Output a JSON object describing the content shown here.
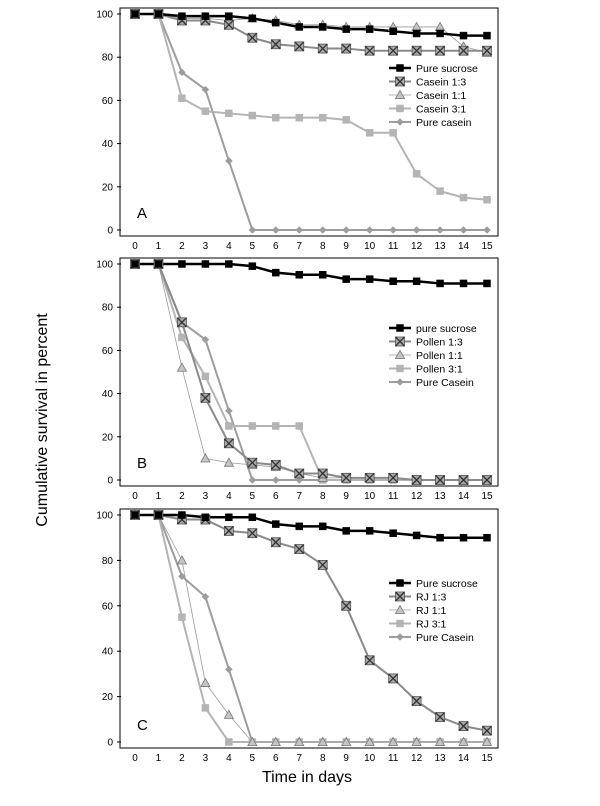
{
  "figure": {
    "ylabel": "Cumulative survival in percent",
    "xlabel": "Time in days"
  },
  "chart_data": [
    {
      "type": "line",
      "panel": "A",
      "x": [
        0,
        1,
        2,
        3,
        4,
        5,
        6,
        7,
        8,
        9,
        10,
        11,
        12,
        13,
        14,
        15
      ],
      "xlim": [
        0,
        15
      ],
      "ylim": [
        0,
        100
      ],
      "yticks": [
        0,
        20,
        40,
        60,
        80,
        100
      ],
      "legend": "right",
      "series": [
        {
          "name": "Pure sucrose",
          "style": "sucrose",
          "values": [
            100,
            100,
            99,
            99,
            99,
            98,
            96,
            94,
            94,
            93,
            93,
            92,
            91,
            91,
            90,
            90
          ]
        },
        {
          "name": "Casein 1:3",
          "style": "r13",
          "values": [
            100,
            100,
            97,
            97,
            95,
            89,
            86,
            85,
            84,
            84,
            83,
            83,
            83,
            83,
            83,
            83
          ]
        },
        {
          "name": "Casein 1:1",
          "style": "r11",
          "values": [
            100,
            100,
            98,
            98,
            97,
            98,
            97,
            95,
            95,
            94,
            94,
            94,
            94,
            94,
            85,
            82
          ]
        },
        {
          "name": "Casein 3:1",
          "style": "r31",
          "values": [
            100,
            100,
            61,
            55,
            54,
            53,
            52,
            52,
            52,
            51,
            45,
            45,
            26,
            18,
            15,
            14
          ]
        },
        {
          "name": "Pure casein",
          "style": "casein",
          "values": [
            100,
            100,
            73,
            65,
            32,
            0,
            0,
            0,
            0,
            0,
            0,
            0,
            0,
            0,
            0,
            0
          ]
        }
      ]
    },
    {
      "type": "line",
      "panel": "B",
      "x": [
        0,
        1,
        2,
        3,
        4,
        5,
        6,
        7,
        8,
        9,
        10,
        11,
        12,
        13,
        14,
        15
      ],
      "xlim": [
        0,
        15
      ],
      "ylim": [
        0,
        100
      ],
      "yticks": [
        0,
        20,
        40,
        60,
        80,
        100
      ],
      "legend": "right",
      "series": [
        {
          "name": "pure sucrose",
          "style": "sucrose",
          "values": [
            100,
            100,
            100,
            100,
            100,
            99,
            96,
            95,
            95,
            93,
            93,
            92,
            92,
            91,
            91,
            91
          ]
        },
        {
          "name": "Pollen 1:3",
          "style": "r13",
          "values": [
            100,
            100,
            73,
            38,
            17,
            8,
            7,
            3,
            3,
            1,
            1,
            1,
            0,
            0,
            0,
            0
          ]
        },
        {
          "name": "Pollen 1:1",
          "style": "r11",
          "values": [
            100,
            100,
            52,
            10,
            8,
            7,
            6,
            3,
            1,
            1,
            1,
            1,
            0,
            0,
            0,
            0
          ]
        },
        {
          "name": "Pollen 3:1",
          "style": "r31",
          "values": [
            100,
            100,
            66,
            48,
            25,
            25,
            25,
            25,
            0,
            0,
            0,
            0,
            0,
            0,
            0,
            0
          ]
        },
        {
          "name": "Pure Casein",
          "style": "casein",
          "values": [
            100,
            100,
            73,
            65,
            32,
            0,
            0,
            0,
            0,
            0,
            0,
            0,
            0,
            0,
            0,
            0
          ]
        }
      ]
    },
    {
      "type": "line",
      "panel": "C",
      "x": [
        0,
        1,
        2,
        3,
        4,
        5,
        6,
        7,
        8,
        9,
        10,
        11,
        12,
        13,
        14,
        15
      ],
      "xlim": [
        0,
        15
      ],
      "ylim": [
        0,
        100
      ],
      "yticks": [
        0,
        20,
        40,
        60,
        80,
        100
      ],
      "legend": "right",
      "series": [
        {
          "name": "Pure sucrose",
          "style": "sucrose",
          "values": [
            100,
            100,
            100,
            99,
            99,
            99,
            96,
            95,
            95,
            93,
            93,
            92,
            91,
            90,
            90,
            90
          ]
        },
        {
          "name": "RJ 1:3",
          "style": "r13",
          "values": [
            100,
            100,
            98,
            98,
            93,
            92,
            88,
            85,
            78,
            60,
            36,
            28,
            18,
            11,
            7,
            5
          ]
        },
        {
          "name": "RJ 1:1",
          "style": "r11",
          "values": [
            100,
            100,
            80,
            26,
            12,
            0,
            0,
            0,
            0,
            0,
            0,
            0,
            0,
            0,
            0,
            0
          ]
        },
        {
          "name": "RJ 3:1",
          "style": "r31",
          "values": [
            100,
            100,
            55,
            15,
            0,
            0,
            0,
            0,
            0,
            0,
            0,
            0,
            0,
            0,
            0,
            0
          ]
        },
        {
          "name": "Pure Casein",
          "style": "casein",
          "values": [
            100,
            100,
            73,
            64,
            32,
            0,
            0,
            0,
            0,
            0,
            0,
            0,
            0,
            0,
            0,
            0
          ]
        }
      ]
    }
  ]
}
